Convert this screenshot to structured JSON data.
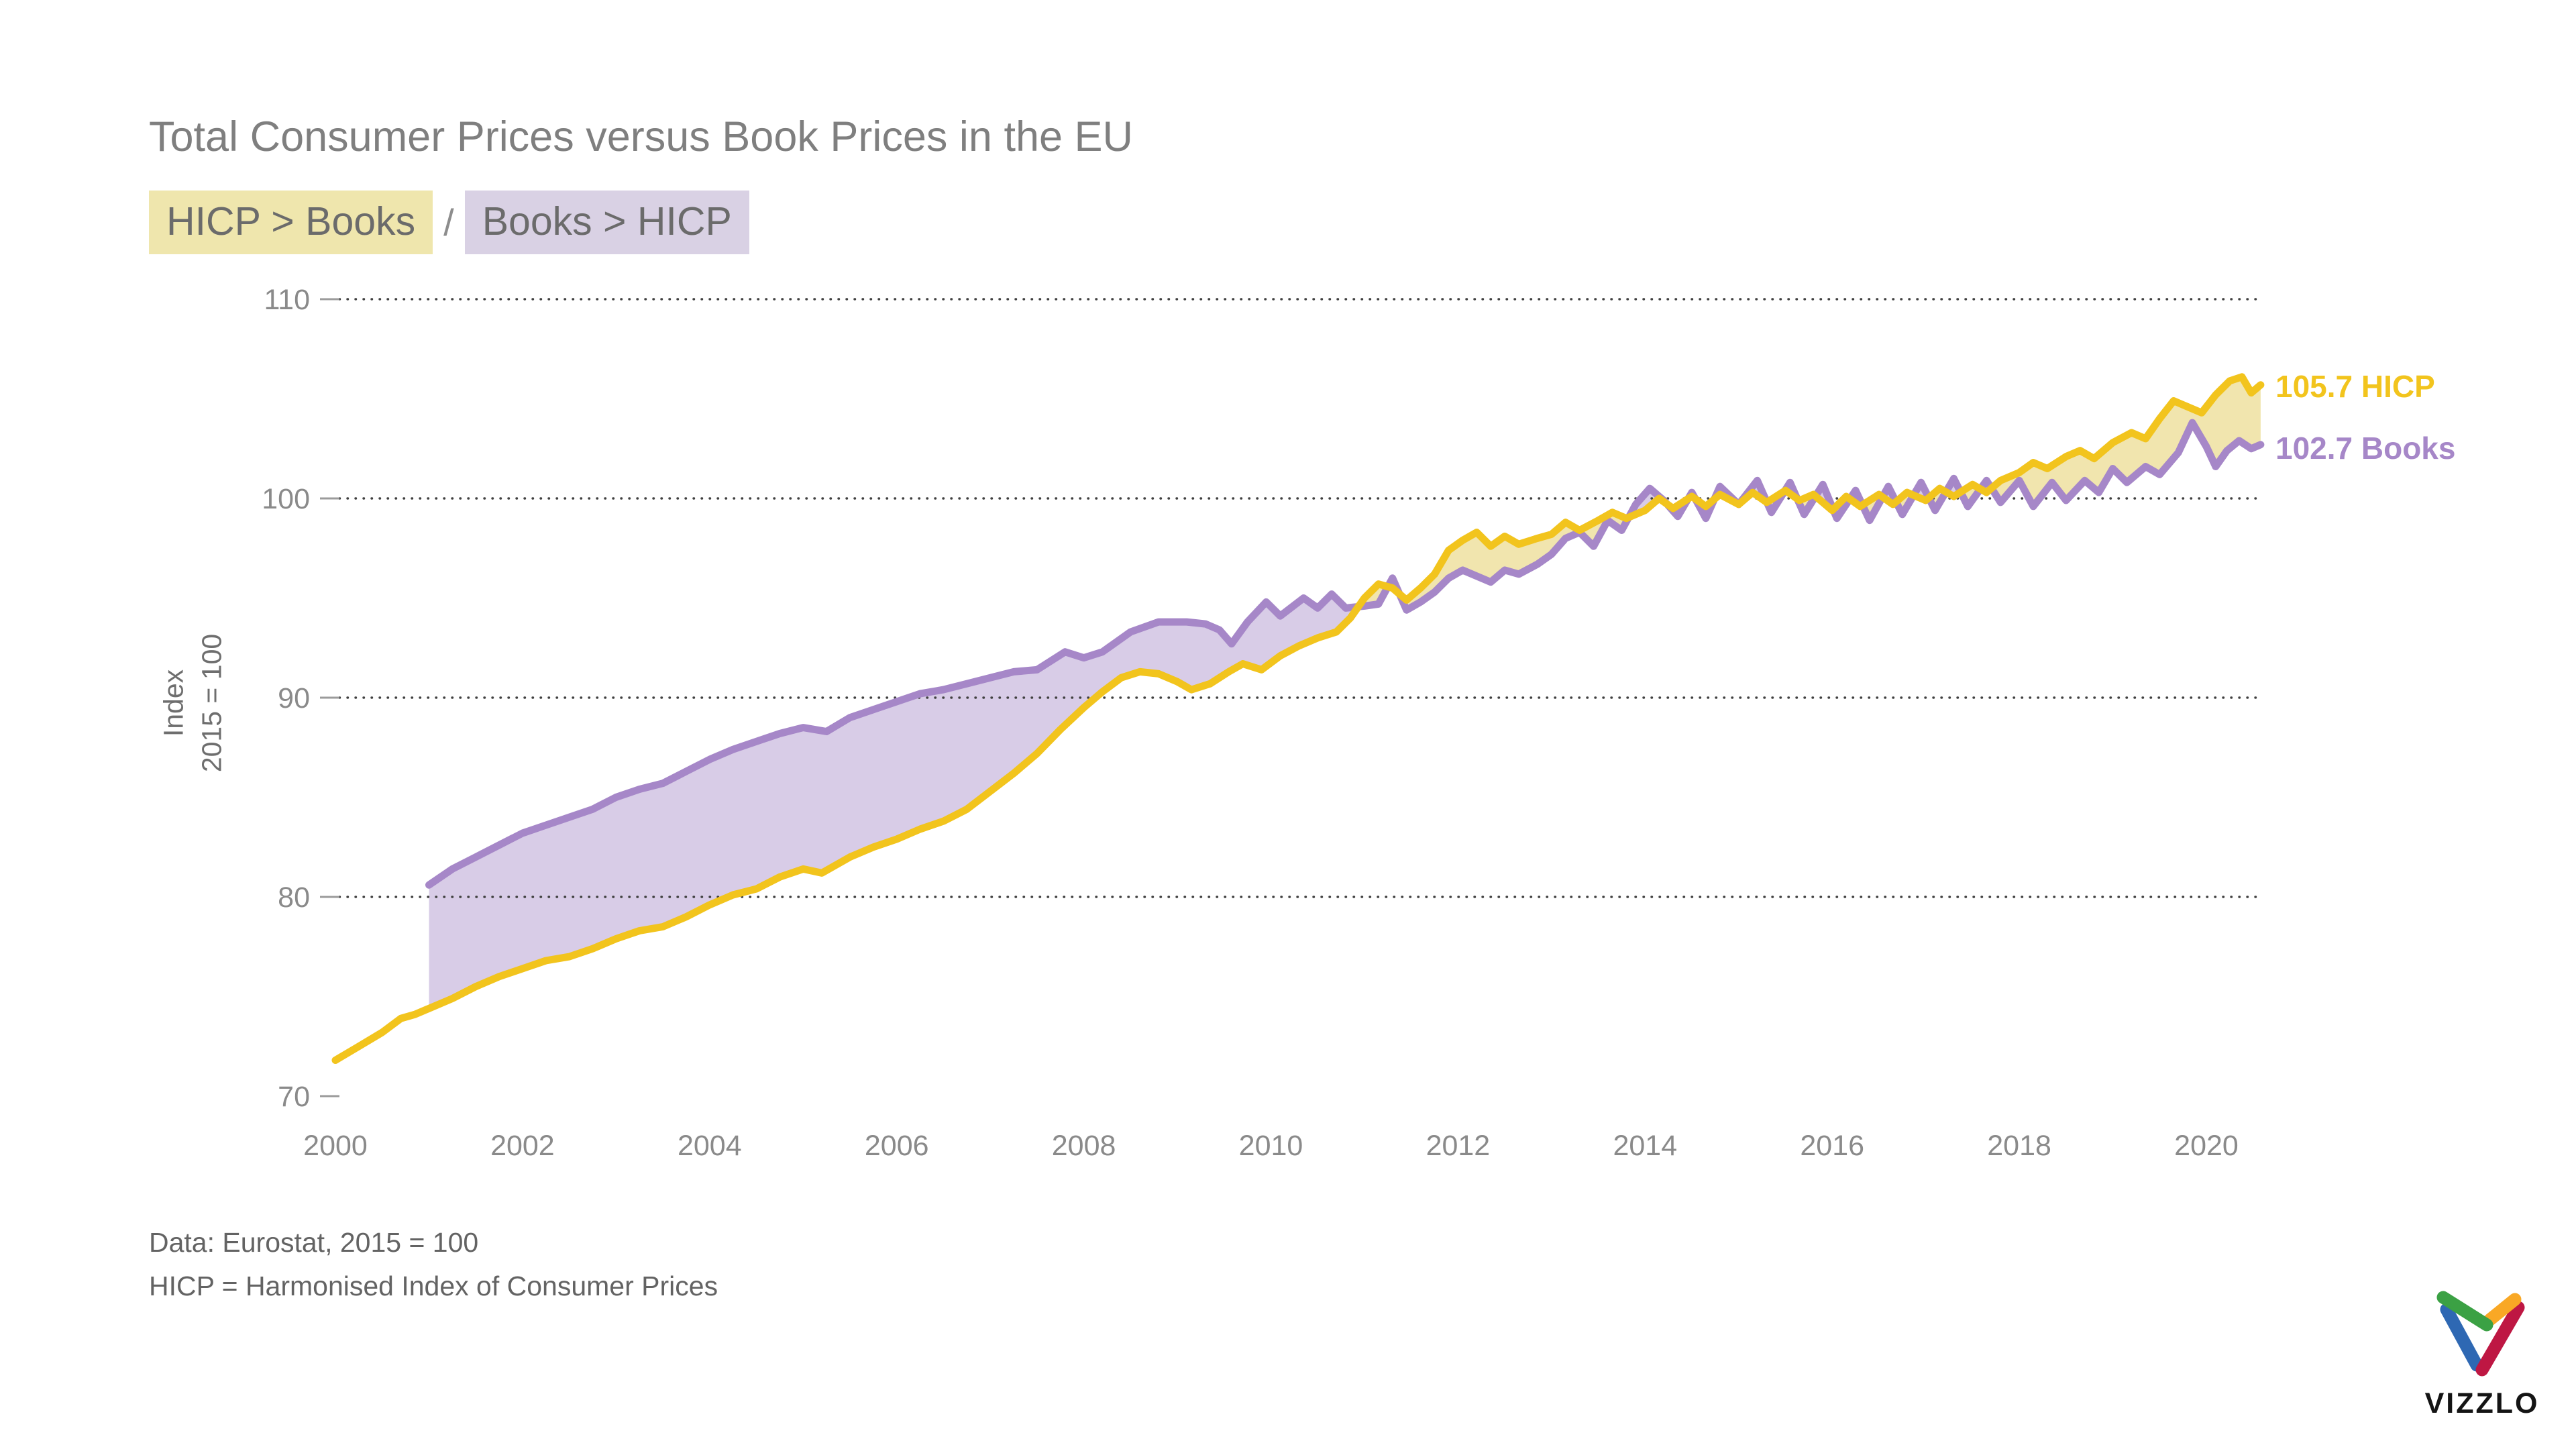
{
  "header": {
    "title": "Total Consumer Prices versus Book Prices in the EU"
  },
  "legend": {
    "separator": "/",
    "pills": [
      {
        "label": "HICP > Books",
        "bg": "#efe6ad"
      },
      {
        "label": "Books > HICP",
        "bg": "#d9d1e4"
      }
    ]
  },
  "series_labels": {
    "hicp": "105.7 HICP",
    "books": "102.7 Books"
  },
  "footer": {
    "line1": "Data: Eurostat, 2015 = 100",
    "line2": "HICP = Harmonised Index of Consumer Prices"
  },
  "branding": {
    "wordmark": "VIZZLO"
  },
  "colors": {
    "yellow_line": "#f2c41d",
    "yellow_fill": "#f1e5ae",
    "purple_line": "#a687c8",
    "purple_fill": "#d8cce7",
    "title_text": "#7f7f7f",
    "tick_text": "#8a8a8a",
    "axis_title_text": "#6e6e6e",
    "pill_text": "#6b6b6b",
    "footer_text": "#636363",
    "grid_dots": "#404040",
    "tick_dash": "#9b9b9b",
    "logo": {
      "green": "#3ba144",
      "blue": "#2e68b3",
      "orange": "#f9a825",
      "red": "#be1743"
    }
  },
  "chart_data": {
    "type": "line",
    "title": "Total Consumer Prices versus Book Prices in the EU",
    "xlabel": "",
    "ylabel": "Index 2015 = 100",
    "ylabel_lines": [
      "Index",
      "2015 = 100"
    ],
    "xlim": [
      2000,
      2020.75
    ],
    "ylim": [
      70,
      110
    ],
    "x_ticks": [
      2000,
      2002,
      2004,
      2006,
      2008,
      2010,
      2012,
      2014,
      2016,
      2018,
      2020
    ],
    "y_ticks": [
      70,
      80,
      90,
      100,
      110
    ],
    "grid": "horizontal dotted, no gridline at 70",
    "legend_position": "end-of-line labels at right",
    "fill_between": "yellow where HICP > Books, purple where Books > HICP",
    "series": [
      {
        "name": "HICP",
        "end_value": 105.7,
        "end_label": "105.7 HICP",
        "color": "#f2c41d",
        "fill": "#f1e5ae",
        "points": [
          [
            2000.0,
            71.8
          ],
          [
            2000.25,
            72.5
          ],
          [
            2000.5,
            73.2
          ],
          [
            2000.7,
            73.9
          ],
          [
            2000.85,
            74.1
          ],
          [
            2001.0,
            74.4
          ],
          [
            2001.25,
            74.9
          ],
          [
            2001.5,
            75.5
          ],
          [
            2001.75,
            76.0
          ],
          [
            2002.0,
            76.4
          ],
          [
            2002.25,
            76.8
          ],
          [
            2002.5,
            77.0
          ],
          [
            2002.75,
            77.4
          ],
          [
            2003.0,
            77.9
          ],
          [
            2003.25,
            78.3
          ],
          [
            2003.5,
            78.5
          ],
          [
            2003.75,
            79.0
          ],
          [
            2004.0,
            79.6
          ],
          [
            2004.25,
            80.1
          ],
          [
            2004.5,
            80.4
          ],
          [
            2004.75,
            81.0
          ],
          [
            2005.0,
            81.4
          ],
          [
            2005.2,
            81.2
          ],
          [
            2005.5,
            82.0
          ],
          [
            2005.75,
            82.5
          ],
          [
            2006.0,
            82.9
          ],
          [
            2006.25,
            83.4
          ],
          [
            2006.5,
            83.8
          ],
          [
            2006.75,
            84.4
          ],
          [
            2007.0,
            85.3
          ],
          [
            2007.25,
            86.2
          ],
          [
            2007.5,
            87.2
          ],
          [
            2007.75,
            88.4
          ],
          [
            2008.0,
            89.5
          ],
          [
            2008.2,
            90.3
          ],
          [
            2008.4,
            91.0
          ],
          [
            2008.6,
            91.3
          ],
          [
            2008.8,
            91.2
          ],
          [
            2009.0,
            90.8
          ],
          [
            2009.15,
            90.4
          ],
          [
            2009.35,
            90.7
          ],
          [
            2009.55,
            91.3
          ],
          [
            2009.7,
            91.7
          ],
          [
            2009.9,
            91.4
          ],
          [
            2010.1,
            92.1
          ],
          [
            2010.3,
            92.6
          ],
          [
            2010.5,
            93.0
          ],
          [
            2010.7,
            93.3
          ],
          [
            2010.85,
            94.0
          ],
          [
            2011.0,
            95.0
          ],
          [
            2011.15,
            95.7
          ],
          [
            2011.3,
            95.5
          ],
          [
            2011.45,
            94.9
          ],
          [
            2011.6,
            95.5
          ],
          [
            2011.75,
            96.2
          ],
          [
            2011.9,
            97.4
          ],
          [
            2012.05,
            97.9
          ],
          [
            2012.2,
            98.3
          ],
          [
            2012.35,
            97.6
          ],
          [
            2012.5,
            98.1
          ],
          [
            2012.65,
            97.7
          ],
          [
            2012.85,
            98.0
          ],
          [
            2013.0,
            98.2
          ],
          [
            2013.15,
            98.8
          ],
          [
            2013.3,
            98.4
          ],
          [
            2013.5,
            98.9
          ],
          [
            2013.65,
            99.3
          ],
          [
            2013.8,
            99.0
          ],
          [
            2014.0,
            99.4
          ],
          [
            2014.15,
            100.0
          ],
          [
            2014.3,
            99.5
          ],
          [
            2014.5,
            100.1
          ],
          [
            2014.65,
            99.6
          ],
          [
            2014.8,
            100.2
          ],
          [
            2015.0,
            99.7
          ],
          [
            2015.15,
            100.3
          ],
          [
            2015.3,
            99.8
          ],
          [
            2015.5,
            100.4
          ],
          [
            2015.65,
            99.9
          ],
          [
            2015.8,
            100.2
          ],
          [
            2016.0,
            99.4
          ],
          [
            2016.15,
            100.1
          ],
          [
            2016.3,
            99.6
          ],
          [
            2016.5,
            100.2
          ],
          [
            2016.65,
            99.7
          ],
          [
            2016.8,
            100.3
          ],
          [
            2017.0,
            99.9
          ],
          [
            2017.15,
            100.5
          ],
          [
            2017.3,
            100.1
          ],
          [
            2017.5,
            100.7
          ],
          [
            2017.65,
            100.3
          ],
          [
            2017.8,
            100.9
          ],
          [
            2018.0,
            101.3
          ],
          [
            2018.15,
            101.8
          ],
          [
            2018.3,
            101.5
          ],
          [
            2018.5,
            102.1
          ],
          [
            2018.65,
            102.4
          ],
          [
            2018.8,
            102.0
          ],
          [
            2019.0,
            102.8
          ],
          [
            2019.2,
            103.3
          ],
          [
            2019.35,
            103.0
          ],
          [
            2019.5,
            104.0
          ],
          [
            2019.65,
            104.9
          ],
          [
            2019.8,
            104.6
          ],
          [
            2019.95,
            104.3
          ],
          [
            2020.1,
            105.2
          ],
          [
            2020.25,
            105.9
          ],
          [
            2020.38,
            106.1
          ],
          [
            2020.48,
            105.3
          ],
          [
            2020.58,
            105.7
          ]
        ]
      },
      {
        "name": "Books",
        "end_value": 102.7,
        "end_label": "102.7 Books",
        "color": "#a687c8",
        "fill": "#d8cce7",
        "points": [
          [
            2001.0,
            80.6
          ],
          [
            2001.25,
            81.4
          ],
          [
            2001.5,
            82.0
          ],
          [
            2001.75,
            82.6
          ],
          [
            2002.0,
            83.2
          ],
          [
            2002.25,
            83.6
          ],
          [
            2002.5,
            84.0
          ],
          [
            2002.75,
            84.4
          ],
          [
            2003.0,
            85.0
          ],
          [
            2003.25,
            85.4
          ],
          [
            2003.5,
            85.7
          ],
          [
            2003.75,
            86.3
          ],
          [
            2004.0,
            86.9
          ],
          [
            2004.25,
            87.4
          ],
          [
            2004.5,
            87.8
          ],
          [
            2004.75,
            88.2
          ],
          [
            2005.0,
            88.5
          ],
          [
            2005.25,
            88.3
          ],
          [
            2005.5,
            89.0
          ],
          [
            2005.75,
            89.4
          ],
          [
            2006.0,
            89.8
          ],
          [
            2006.25,
            90.2
          ],
          [
            2006.5,
            90.4
          ],
          [
            2006.75,
            90.7
          ],
          [
            2007.0,
            91.0
          ],
          [
            2007.25,
            91.3
          ],
          [
            2007.5,
            91.4
          ],
          [
            2007.8,
            92.3
          ],
          [
            2008.0,
            92.0
          ],
          [
            2008.2,
            92.3
          ],
          [
            2008.5,
            93.3
          ],
          [
            2008.8,
            93.8
          ],
          [
            2009.1,
            93.8
          ],
          [
            2009.3,
            93.7
          ],
          [
            2009.45,
            93.4
          ],
          [
            2009.58,
            92.7
          ],
          [
            2009.75,
            93.8
          ],
          [
            2009.95,
            94.8
          ],
          [
            2010.1,
            94.1
          ],
          [
            2010.35,
            95.0
          ],
          [
            2010.5,
            94.5
          ],
          [
            2010.65,
            95.2
          ],
          [
            2010.8,
            94.5
          ],
          [
            2011.0,
            94.6
          ],
          [
            2011.15,
            94.7
          ],
          [
            2011.3,
            96.0
          ],
          [
            2011.45,
            94.4
          ],
          [
            2011.6,
            94.8
          ],
          [
            2011.75,
            95.3
          ],
          [
            2011.9,
            96.0
          ],
          [
            2012.05,
            96.4
          ],
          [
            2012.2,
            96.1
          ],
          [
            2012.35,
            95.8
          ],
          [
            2012.5,
            96.4
          ],
          [
            2012.65,
            96.2
          ],
          [
            2012.85,
            96.7
          ],
          [
            2013.0,
            97.2
          ],
          [
            2013.15,
            98.0
          ],
          [
            2013.3,
            98.3
          ],
          [
            2013.45,
            97.6
          ],
          [
            2013.6,
            98.9
          ],
          [
            2013.75,
            98.4
          ],
          [
            2013.9,
            99.7
          ],
          [
            2014.05,
            100.5
          ],
          [
            2014.2,
            99.9
          ],
          [
            2014.35,
            99.1
          ],
          [
            2014.5,
            100.3
          ],
          [
            2014.65,
            99.0
          ],
          [
            2014.8,
            100.6
          ],
          [
            2015.0,
            99.7
          ],
          [
            2015.2,
            100.9
          ],
          [
            2015.35,
            99.3
          ],
          [
            2015.55,
            100.8
          ],
          [
            2015.7,
            99.2
          ],
          [
            2015.9,
            100.7
          ],
          [
            2016.05,
            99.0
          ],
          [
            2016.25,
            100.4
          ],
          [
            2016.4,
            98.9
          ],
          [
            2016.6,
            100.6
          ],
          [
            2016.75,
            99.2
          ],
          [
            2016.95,
            100.8
          ],
          [
            2017.1,
            99.4
          ],
          [
            2017.3,
            101.0
          ],
          [
            2017.45,
            99.6
          ],
          [
            2017.65,
            100.9
          ],
          [
            2017.8,
            99.8
          ],
          [
            2018.0,
            100.9
          ],
          [
            2018.15,
            99.6
          ],
          [
            2018.35,
            100.8
          ],
          [
            2018.5,
            99.9
          ],
          [
            2018.7,
            100.9
          ],
          [
            2018.85,
            100.3
          ],
          [
            2019.0,
            101.5
          ],
          [
            2019.15,
            100.8
          ],
          [
            2019.35,
            101.6
          ],
          [
            2019.5,
            101.2
          ],
          [
            2019.7,
            102.3
          ],
          [
            2019.85,
            103.8
          ],
          [
            2020.0,
            102.6
          ],
          [
            2020.1,
            101.6
          ],
          [
            2020.22,
            102.4
          ],
          [
            2020.35,
            102.9
          ],
          [
            2020.48,
            102.5
          ],
          [
            2020.58,
            102.7
          ]
        ]
      }
    ]
  }
}
